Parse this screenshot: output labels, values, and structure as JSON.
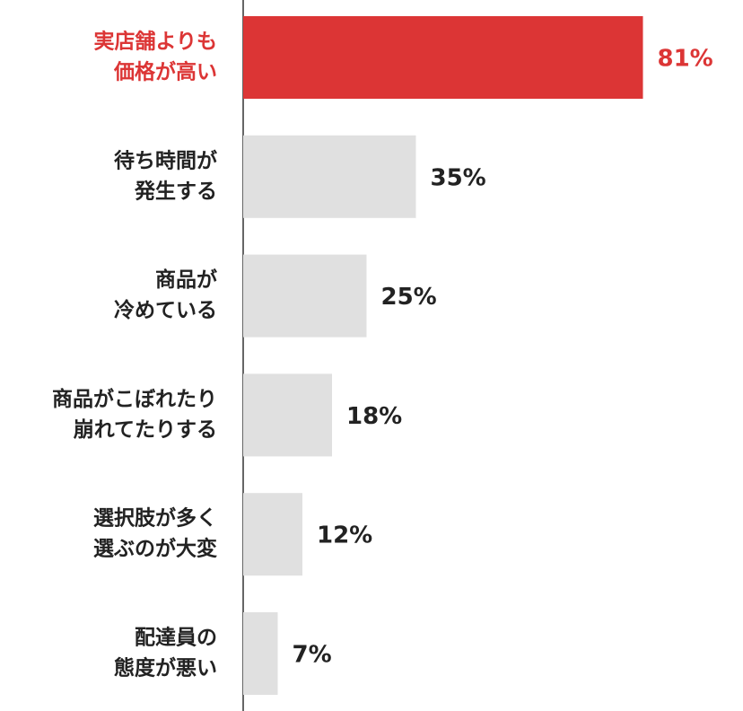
{
  "chart_data": {
    "type": "barh",
    "categories": [
      [
        "実店舗よりも",
        "価格が高い"
      ],
      [
        "待ち時間が",
        "発生する"
      ],
      [
        "商品が",
        "冷めている"
      ],
      [
        "商品がこぼれたり",
        "崩れてたりする"
      ],
      [
        "選択肢が多く",
        "選ぶのが大変"
      ],
      [
        "配達員の",
        "態度が悪い"
      ]
    ],
    "values": [
      81,
      35,
      25,
      18,
      12,
      7
    ],
    "value_labels": [
      "81%",
      "35%",
      "25%",
      "18%",
      "12%",
      "7%"
    ],
    "color": "#e0e0e0",
    "highlight_color": "#dc3535",
    "highlight_index": 0,
    "xlim": [
      0,
      100
    ]
  }
}
